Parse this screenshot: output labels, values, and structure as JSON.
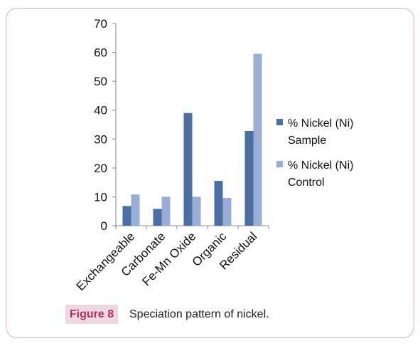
{
  "caption": {
    "label": "Figure 8",
    "text": "Speciation pattern of nickel."
  },
  "chart_data": {
    "type": "bar",
    "categories": [
      "Exchangeable",
      "Carbonate",
      "Fe-Mn Oxide",
      "Organic",
      "Residual"
    ],
    "series": [
      {
        "name": "% Nickel (Ni) Sample",
        "name_lines": [
          "% Nickel (Ni)",
          "Sample"
        ],
        "values": [
          6.8,
          5.8,
          39,
          15.5,
          32.8
        ],
        "color": "#4a6fa0"
      },
      {
        "name": "% Nickel (Ni) Control",
        "name_lines": [
          "% Nickel (Ni)",
          "Control"
        ],
        "values": [
          10.8,
          10,
          10,
          9.6,
          59.5
        ],
        "color": "#9aadd6"
      }
    ],
    "ylim": [
      0,
      70
    ],
    "yticks": [
      0,
      10,
      20,
      30,
      40,
      50,
      60,
      70
    ],
    "grid": false,
    "legend": "right",
    "title": "",
    "xlabel": "",
    "ylabel": ""
  }
}
